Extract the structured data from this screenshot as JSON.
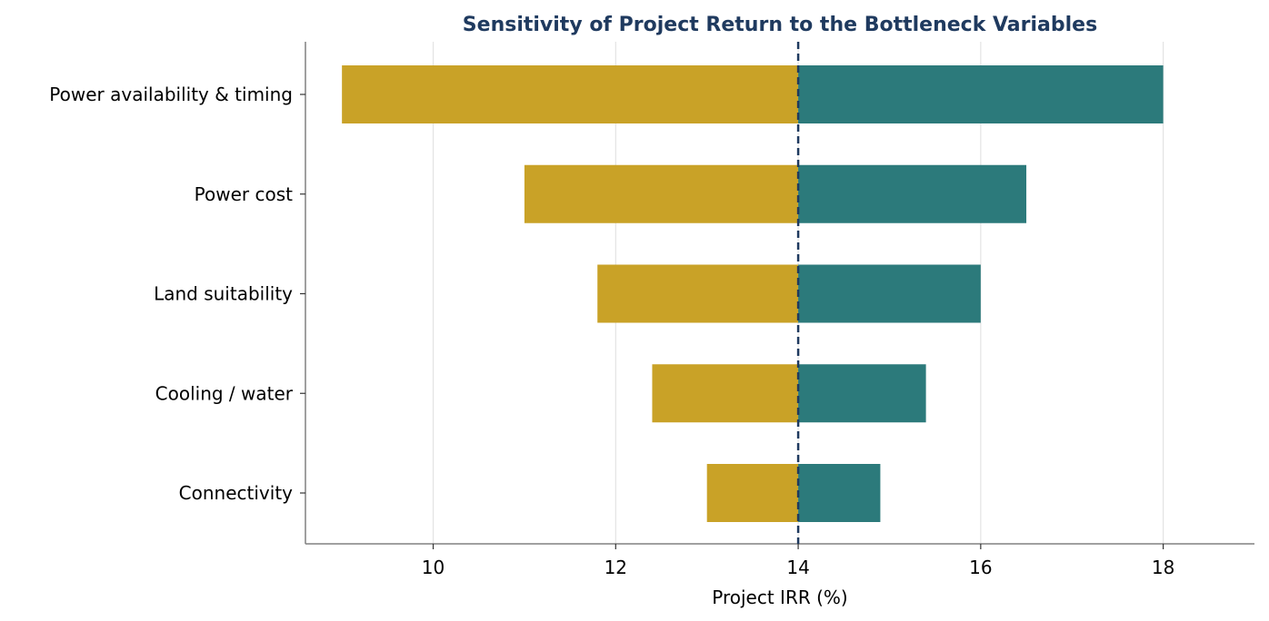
{
  "chart_data": {
    "type": "bar",
    "orientation": "horizontal",
    "style": "tornado",
    "title": "Sensitivity of Project Return to the Bottleneck Variables",
    "xlabel": "Project IRR (%)",
    "ylabel": "",
    "baseline": 14,
    "xlim": [
      8.6,
      19.0
    ],
    "xticks": [
      10,
      12,
      14,
      16,
      18
    ],
    "grid": "x",
    "categories": [
      "Power availability & timing",
      "Power cost",
      "Land suitability",
      "Cooling / water",
      "Connectivity"
    ],
    "low": [
      9.0,
      11.0,
      11.8,
      12.4,
      13.0
    ],
    "high": [
      18.0,
      16.5,
      16.0,
      15.4,
      14.9
    ],
    "colors": {
      "low": "#C9A227",
      "high": "#2C7A7B",
      "baseline": "#1F3A5F",
      "title": "#1F3A5F",
      "grid": "#e3e3e3",
      "axis": "#808080"
    }
  }
}
